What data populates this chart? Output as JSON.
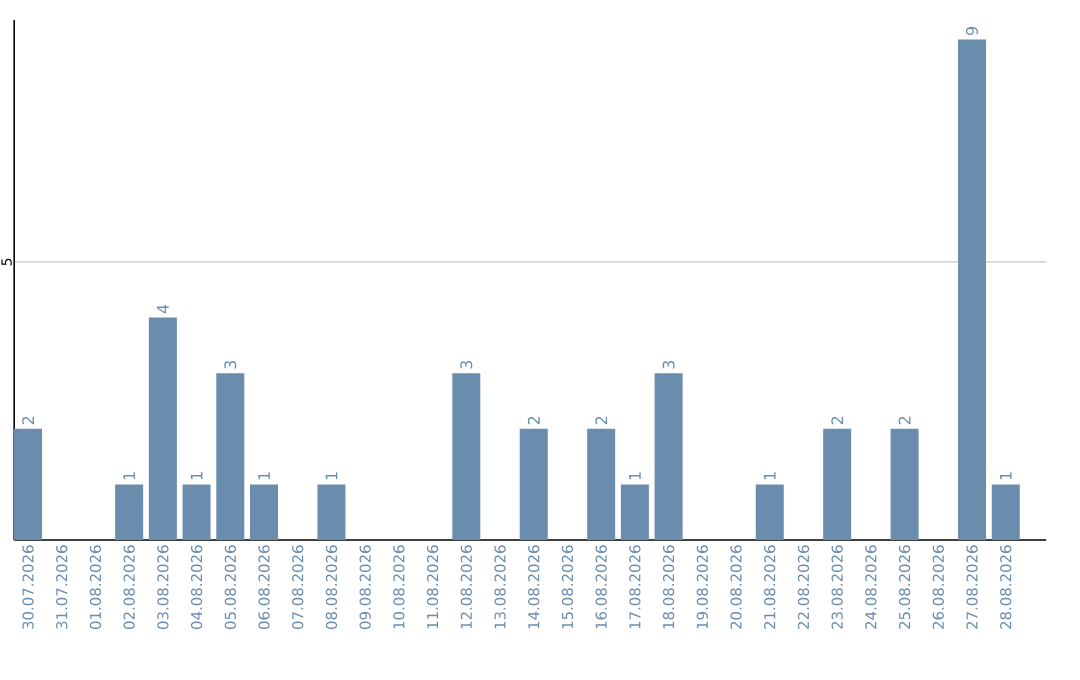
{
  "chart_data": {
    "type": "bar",
    "categories": [
      "30.07.2026",
      "31.07.2026",
      "01.08.2026",
      "02.08.2026",
      "03.08.2026",
      "04.08.2026",
      "05.08.2026",
      "06.08.2026",
      "07.08.2026",
      "08.08.2026",
      "09.08.2026",
      "10.08.2026",
      "11.08.2026",
      "12.08.2026",
      "13.08.2026",
      "14.08.2026",
      "15.08.2026",
      "16.08.2026",
      "17.08.2026",
      "18.08.2026",
      "19.08.2026",
      "20.08.2026",
      "21.08.2026",
      "22.08.2026",
      "23.08.2026",
      "24.08.2026",
      "25.08.2026",
      "26.08.2026",
      "27.08.2026",
      "28.08.2026"
    ],
    "values": [
      2,
      0,
      0,
      1,
      4,
      1,
      3,
      1,
      0,
      1,
      0,
      0,
      0,
      3,
      0,
      2,
      0,
      2,
      1,
      3,
      0,
      0,
      1,
      0,
      2,
      0,
      2,
      0,
      9,
      1
    ],
    "value_labels": [
      "2",
      null,
      null,
      "1",
      "4",
      "1",
      "3",
      "1",
      null,
      "1",
      null,
      null,
      null,
      "3",
      null,
      "2",
      null,
      "2",
      "1",
      "3",
      null,
      null,
      "1",
      null,
      "2",
      null,
      "2",
      null,
      "9",
      "1"
    ],
    "color": "#6a8cad",
    "ylim": [
      0,
      9.35
    ],
    "yticks": [
      5
    ],
    "grid": "y"
  }
}
